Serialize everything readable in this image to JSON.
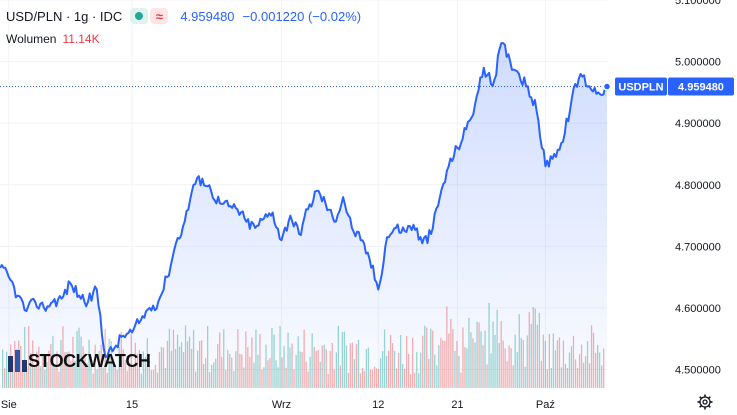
{
  "header": {
    "symbol": "USD/PLN · 1g · IDC",
    "price": "4.959480",
    "change": "−0.001220 (−0.02%)"
  },
  "volume": {
    "label": "Wolumen",
    "value": "11.14K"
  },
  "watermark": "STOCKWATCH",
  "price_tag": {
    "symbol": "USDPLN",
    "value": "4.959480"
  },
  "colors": {
    "line": "#2962ff",
    "vol_up": "#26a69a",
    "vol_down": "#ef5350"
  },
  "chart_data": {
    "type": "line",
    "ylim": [
      4.47,
      5.1
    ],
    "y_ticks": [
      "5.100000",
      "5.000000",
      "4.900000",
      "4.800000",
      "4.700000",
      "4.600000",
      "4.500000"
    ],
    "x_ticks": [
      {
        "label": "Sie",
        "x": 1
      },
      {
        "label": "15",
        "x": 15
      },
      {
        "label": "Wrz",
        "x": 32
      },
      {
        "label": "12",
        "x": 43
      },
      {
        "label": "21",
        "x": 52
      },
      {
        "label": "Paź",
        "x": 62
      }
    ],
    "x": [
      0,
      1,
      2,
      3,
      4,
      5,
      6,
      7,
      8,
      9,
      10,
      11,
      12,
      13,
      14,
      15,
      16,
      17,
      18,
      19,
      20,
      21,
      22,
      23,
      24,
      25,
      26,
      27,
      28,
      29,
      30,
      31,
      32,
      33,
      34,
      35,
      36,
      37,
      38,
      39,
      40,
      41,
      42,
      43,
      44,
      45,
      46,
      47,
      48,
      49,
      50,
      51,
      52,
      53,
      54,
      55,
      56,
      57,
      58,
      59,
      60,
      61,
      62,
      63,
      64,
      65,
      66,
      67,
      68,
      69
    ],
    "y": [
      4.665,
      4.65,
      4.62,
      4.595,
      4.61,
      4.6,
      4.61,
      4.615,
      4.64,
      4.62,
      4.61,
      4.63,
      4.52,
      4.535,
      4.555,
      4.56,
      4.58,
      4.6,
      4.61,
      4.65,
      4.705,
      4.74,
      4.8,
      4.81,
      4.79,
      4.77,
      4.765,
      4.76,
      4.74,
      4.73,
      4.745,
      4.755,
      4.71,
      4.75,
      4.72,
      4.76,
      4.79,
      4.77,
      4.74,
      4.78,
      4.73,
      4.71,
      4.68,
      4.63,
      4.715,
      4.73,
      4.725,
      4.735,
      4.705,
      4.72,
      4.78,
      4.83,
      4.86,
      4.89,
      4.93,
      4.99,
      4.96,
      5.03,
      5.0,
      4.98,
      4.96,
      4.92,
      4.83,
      4.85,
      4.87,
      4.94,
      4.98,
      4.96,
      4.95,
      4.959
    ]
  }
}
